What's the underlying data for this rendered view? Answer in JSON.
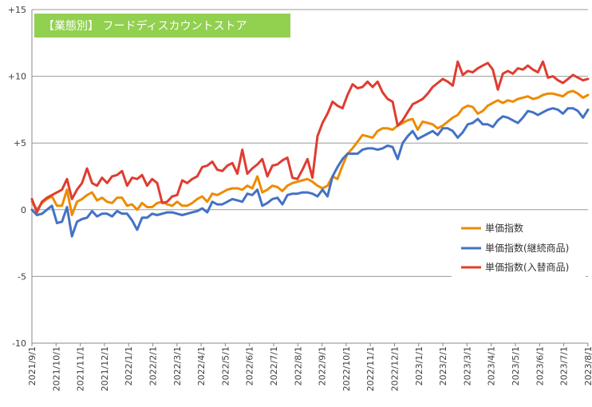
{
  "chart_data": {
    "type": "line",
    "title": "【業態別】 フードディスカウントストア",
    "title_bg_color": "#92d050",
    "ylim": [
      -10,
      15
    ],
    "yticks": [
      15,
      10,
      5,
      0,
      -5,
      -10
    ],
    "ytick_labels": [
      "+15",
      "+10",
      "+5",
      "0",
      "-5",
      "-10"
    ],
    "xtick_labels": [
      "2021/9/1",
      "2021/10/1",
      "2021/11/1",
      "2021/12/1",
      "2022/1/1",
      "2022/2/1",
      "2022/3/1",
      "2022/4/1",
      "2022/5/1",
      "2022/6/1",
      "2022/7/1",
      "2022/8/1",
      "2022/9/1",
      "2022/10/1",
      "2022/11/1",
      "2022/12/1",
      "2023/1/1",
      "2023/2/1",
      "2023/3/1",
      "2023/4/1",
      "2023/5/1",
      "2023/6/1",
      "2023/7/1",
      "2023/8/1"
    ],
    "grid": "horizontal",
    "legend_position": "right",
    "series": [
      {
        "name": "単価指数",
        "color": "#ed8b00",
        "values": [
          0.6,
          0.0,
          0.5,
          0.8,
          1.0,
          0.3,
          0.3,
          1.5,
          -0.4,
          0.6,
          0.8,
          1.1,
          1.3,
          0.7,
          0.9,
          0.6,
          0.5,
          0.9,
          0.9,
          0.3,
          0.4,
          0.0,
          0.5,
          0.2,
          0.2,
          0.5,
          0.6,
          0.4,
          0.3,
          0.6,
          0.3,
          0.3,
          0.5,
          0.8,
          1.0,
          0.6,
          1.2,
          1.1,
          1.3,
          1.5,
          1.6,
          1.6,
          1.5,
          1.8,
          1.6,
          2.5,
          1.3,
          1.5,
          1.8,
          1.7,
          1.4,
          1.8,
          2.0,
          2.1,
          2.2,
          2.3,
          2.1,
          1.8,
          1.6,
          1.8,
          2.5,
          2.3,
          3.3,
          4.2,
          4.6,
          5.1,
          5.6,
          5.5,
          5.4,
          5.9,
          6.1,
          6.1,
          6.0,
          6.3,
          6.5,
          6.7,
          6.8,
          6.0,
          6.6,
          6.5,
          6.4,
          6.1,
          6.3,
          6.6,
          6.9,
          7.1,
          7.6,
          7.8,
          7.7,
          7.2,
          7.4,
          7.8,
          8.0,
          8.2,
          8.0,
          8.2,
          8.1,
          8.3,
          8.4,
          8.5,
          8.3,
          8.4,
          8.6,
          8.7,
          8.7,
          8.6,
          8.5,
          8.8,
          8.9,
          8.7,
          8.4,
          8.6
        ]
      },
      {
        "name": "単価指数(継続商品)",
        "color": "#4472c4",
        "values": [
          0.0,
          -0.4,
          -0.3,
          0.0,
          0.3,
          -1.0,
          -0.9,
          0.2,
          -2.0,
          -0.9,
          -0.7,
          -0.6,
          -0.1,
          -0.5,
          -0.3,
          -0.3,
          -0.5,
          -0.1,
          -0.3,
          -0.3,
          -0.8,
          -1.5,
          -0.6,
          -0.6,
          -0.3,
          -0.4,
          -0.3,
          -0.2,
          -0.2,
          -0.3,
          -0.4,
          -0.3,
          -0.2,
          -0.1,
          0.1,
          -0.2,
          0.6,
          0.4,
          0.4,
          0.6,
          0.8,
          0.7,
          0.6,
          1.2,
          1.1,
          1.5,
          0.3,
          0.5,
          0.8,
          0.9,
          0.4,
          1.1,
          1.2,
          1.2,
          1.3,
          1.3,
          1.2,
          1.0,
          1.5,
          1.0,
          2.5,
          3.2,
          3.8,
          4.2,
          4.2,
          4.2,
          4.5,
          4.6,
          4.6,
          4.5,
          4.6,
          4.8,
          4.7,
          3.8,
          5.0,
          5.5,
          5.9,
          5.3,
          5.5,
          5.7,
          5.9,
          5.6,
          6.1,
          6.1,
          5.9,
          5.4,
          5.8,
          6.4,
          6.5,
          6.8,
          6.4,
          6.4,
          6.2,
          6.7,
          7.0,
          6.9,
          6.7,
          6.5,
          6.9,
          7.4,
          7.3,
          7.1,
          7.3,
          7.5,
          7.6,
          7.5,
          7.2,
          7.6,
          7.6,
          7.4,
          6.9,
          7.5
        ]
      },
      {
        "name": "単価指数(入替商品)",
        "color": "#e03c31",
        "values": [
          0.8,
          -0.2,
          0.6,
          0.9,
          1.1,
          1.3,
          1.5,
          2.3,
          0.8,
          1.5,
          2.0,
          3.1,
          2.0,
          1.8,
          2.4,
          2.0,
          2.5,
          2.6,
          2.9,
          1.8,
          2.4,
          2.3,
          2.6,
          1.8,
          2.3,
          2.0,
          0.5,
          0.6,
          1.0,
          1.1,
          2.2,
          2.0,
          2.3,
          2.5,
          3.2,
          3.3,
          3.6,
          3.0,
          2.9,
          3.3,
          3.5,
          2.7,
          4.5,
          2.7,
          3.1,
          3.4,
          3.8,
          2.5,
          3.3,
          3.4,
          3.7,
          3.9,
          2.4,
          2.3,
          3.0,
          3.8,
          2.4,
          5.5,
          6.5,
          7.2,
          8.1,
          7.8,
          7.6,
          8.6,
          9.4,
          9.1,
          9.2,
          9.6,
          9.2,
          9.6,
          8.8,
          8.3,
          8.1,
          6.3,
          6.7,
          7.3,
          7.9,
          8.1,
          8.3,
          8.7,
          9.2,
          9.5,
          9.8,
          9.6,
          9.3,
          11.1,
          10.1,
          10.4,
          10.3,
          10.6,
          10.8,
          11.0,
          10.5,
          9.0,
          10.2,
          10.4,
          10.2,
          10.6,
          10.5,
          10.8,
          10.5,
          10.3,
          11.1,
          9.9,
          10.0,
          9.7,
          9.5,
          9.8,
          10.1,
          9.9,
          9.7,
          9.8
        ]
      }
    ]
  }
}
